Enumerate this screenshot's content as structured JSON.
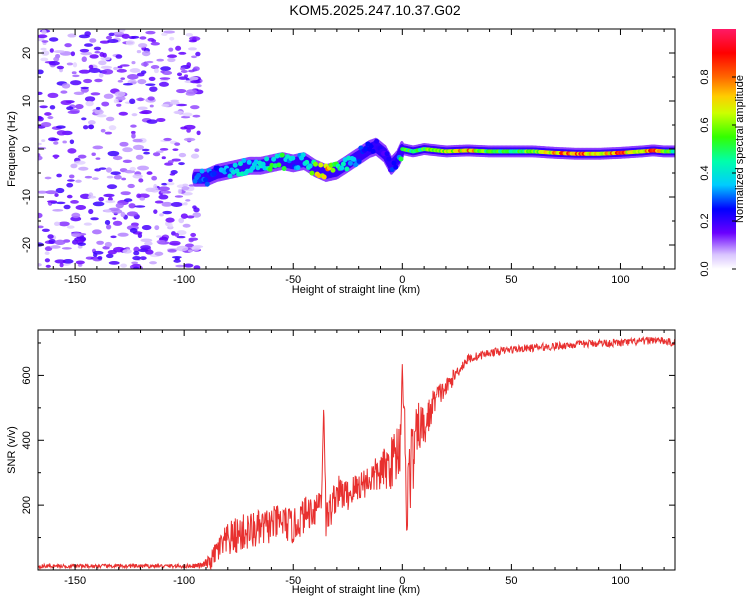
{
  "title": "KOM5.2025.247.10.37.G02",
  "colors": {
    "snr_line": "#e8302f",
    "axis": "#000000",
    "background": "#ffffff"
  },
  "chart_data": [
    {
      "type": "heatmap",
      "name": "spectrogram",
      "xlabel": "Height of straight line (km)",
      "ylabel": "Frequency (Hz)",
      "xlim": [
        -167,
        125
      ],
      "ylim": [
        -25,
        25
      ],
      "xticks": [
        -150,
        -100,
        -50,
        0,
        50,
        100
      ],
      "yticks": [
        -20,
        -10,
        0,
        10,
        20
      ],
      "colorbar": {
        "label": "Normalized spectral amplitude",
        "range": [
          0.0,
          1.0
        ],
        "ticks": [
          "0.0",
          "0.2",
          "0.4",
          "0.6",
          "0.8"
        ],
        "colormap": "rainbow: 0.0 white/violet, 0.2 blue, 0.3 cyan, 0.45 green, 0.6 yellow, 0.7 orange, 0.85 red, 1.0 magenta"
      },
      "noise_region": {
        "x_range": [
          -167,
          -93
        ],
        "y_range": [
          -25,
          25
        ],
        "amplitude": [
          0.0,
          0.2
        ]
      },
      "signal_track": {
        "x": [
          -95,
          -90,
          -85,
          -80,
          -75,
          -70,
          -65,
          -60,
          -55,
          -50,
          -45,
          -40,
          -35,
          -30,
          -25,
          -20,
          -15,
          -12,
          -8,
          -5,
          -2,
          0,
          5,
          10,
          20,
          30,
          40,
          50,
          60,
          70,
          80,
          90,
          100,
          110,
          115,
          120,
          125
        ],
        "frequency": [
          -6,
          -6,
          -5,
          -4.5,
          -4,
          -3.5,
          -3.5,
          -3,
          -2.5,
          -3,
          -2.5,
          -4,
          -5,
          -4.5,
          -3,
          -1.5,
          0,
          0.5,
          -1,
          -3.5,
          -2,
          0,
          -0.5,
          0,
          -0.5,
          -0.3,
          -0.5,
          -0.5,
          -0.5,
          -0.8,
          -1,
          -1,
          -0.8,
          -0.5,
          -0.3,
          -0.5,
          -0.5
        ],
        "amplitude": [
          0.35,
          0.3,
          0.3,
          0.35,
          0.4,
          0.4,
          0.45,
          0.5,
          0.5,
          0.35,
          0.35,
          0.6,
          0.8,
          0.55,
          0.4,
          0.3,
          0.25,
          0.25,
          0.2,
          0.25,
          0.3,
          0.55,
          0.55,
          0.6,
          0.7,
          0.8,
          0.55,
          0.5,
          0.6,
          0.8,
          0.9,
          0.7,
          0.9,
          0.6,
          0.95,
          0.6,
          0.5
        ]
      }
    },
    {
      "type": "line",
      "name": "snr",
      "xlabel": "Height of straight line (km)",
      "ylabel": "SNR (v/v)",
      "xlim": [
        -167,
        125
      ],
      "ylim": [
        0,
        740
      ],
      "xticks": [
        -150,
        -100,
        -50,
        0,
        50,
        100
      ],
      "yticks": [
        200,
        400,
        600
      ],
      "series": [
        {
          "name": "SNR",
          "x": [
            -167,
            -150,
            -120,
            -100,
            -92,
            -88,
            -85,
            -80,
            -75,
            -70,
            -65,
            -60,
            -55,
            -50,
            -45,
            -40,
            -37,
            -36,
            -35,
            -30,
            -25,
            -20,
            -15,
            -10,
            -5,
            -3,
            -1,
            0,
            1,
            2,
            3,
            5,
            8,
            10,
            15,
            20,
            25,
            30,
            40,
            50,
            60,
            70,
            80,
            90,
            100,
            110,
            115,
            120,
            125
          ],
          "y": [
            12,
            12,
            12,
            12,
            14,
            25,
            60,
            90,
            110,
            120,
            125,
            140,
            150,
            130,
            170,
            190,
            230,
            520,
            150,
            240,
            230,
            260,
            280,
            300,
            330,
            360,
            380,
            640,
            420,
            150,
            300,
            350,
            450,
            430,
            530,
            560,
            610,
            650,
            670,
            680,
            685,
            690,
            695,
            700,
            700,
            705,
            710,
            705,
            700
          ],
          "noise_amplitude": [
            6,
            6,
            6,
            6,
            8,
            25,
            40,
            55,
            60,
            60,
            60,
            55,
            55,
            55,
            55,
            55,
            50,
            0,
            60,
            55,
            50,
            50,
            50,
            60,
            80,
            100,
            90,
            0,
            120,
            40,
            150,
            120,
            80,
            70,
            40,
            30,
            20,
            15,
            12,
            12,
            12,
            12,
            12,
            12,
            12,
            12,
            12,
            12,
            12
          ]
        }
      ]
    }
  ]
}
